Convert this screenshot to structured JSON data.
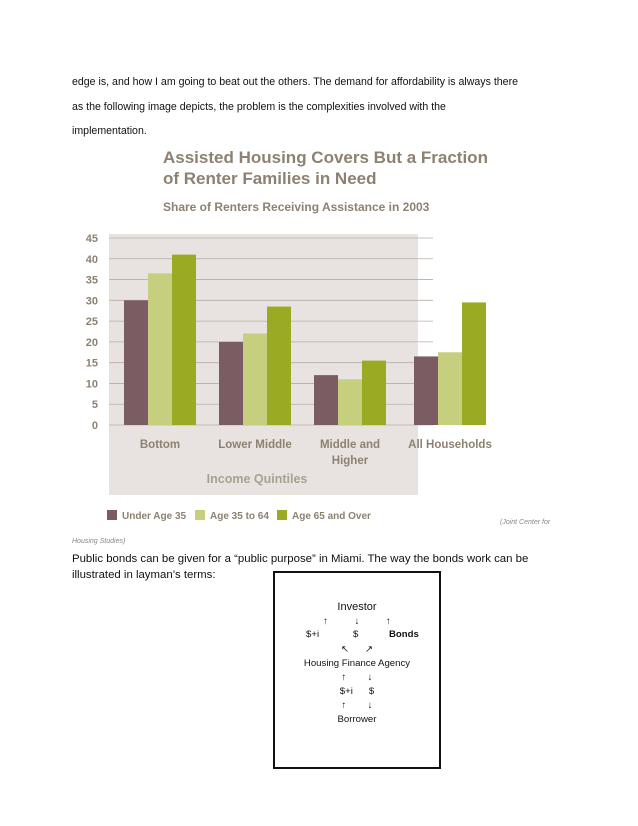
{
  "text": {
    "para1_line1": "edge is, and how I am going to beat out the others. The demand for affordability is always there",
    "para1_line2": "as the following image depicts, the problem is the complexities involved with the",
    "para1_line3": "implementation.",
    "caption_right": "(Joint Center for",
    "caption_left": "Housing Studies)",
    "para2_line1": "Public bonds can be given for a “public purpose” in Miami. The way the bonds work can be",
    "para2_line2": "illustrated in layman’s terms:"
  },
  "chart_data": {
    "type": "bar",
    "title_line1": "Assisted Housing Covers But a Fraction",
    "title_line2": "of Renter Families in Need",
    "subtitle": "Share of Renters Receiving Assistance in 2003",
    "xlabel": "Income Quintiles",
    "ylabel": "",
    "ylim": [
      0,
      45
    ],
    "yticks": [
      "0",
      "5",
      "10",
      "15",
      "20",
      "25",
      "30",
      "35",
      "40",
      "45"
    ],
    "grid": true,
    "legend_position": "bottom",
    "categories": [
      "Bottom",
      "Lower Middle",
      "Middle and Higher",
      "All Households"
    ],
    "category_lines": [
      [
        "Bottom"
      ],
      [
        "Lower Middle"
      ],
      [
        "Middle and",
        "Higher"
      ],
      [
        "All Households"
      ]
    ],
    "series": [
      {
        "name": "Under Age 35",
        "color": "#7a5c62",
        "values": [
          30,
          20,
          12,
          16.5
        ]
      },
      {
        "name": "Age 35 to 64",
        "color": "#c5cf7d",
        "values": [
          36.5,
          22,
          11,
          17.5
        ]
      },
      {
        "name": "Age 65 and Over",
        "color": "#9aaa23",
        "values": [
          41,
          28.5,
          15.5,
          29.5
        ]
      }
    ],
    "colors": {
      "plot_bg": "#e8e3e0",
      "grid": "#b8aea8",
      "text": "#8d8171"
    }
  },
  "flow": {
    "investor": "Investor",
    "row1_arrows": "↑          ↓          ↑",
    "row1_labels": [
      "$+i",
      "$",
      "Bonds"
    ],
    "row2_arrows": "↖      ↗",
    "agency": "Housing Finance Agency",
    "row3_arrows": "↑        ↓",
    "row3_labels": "$+i      $",
    "row4_arrows": "↑        ↓",
    "borrower": "Borrower"
  }
}
